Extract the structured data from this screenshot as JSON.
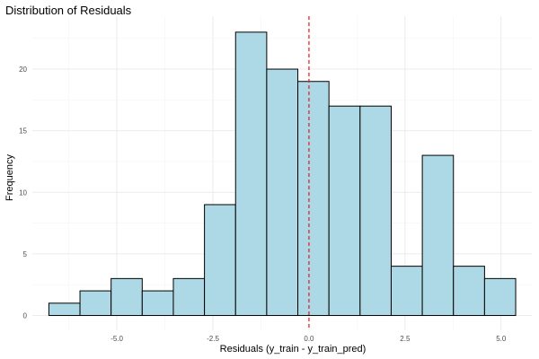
{
  "chart_data": {
    "type": "bar",
    "title": "Distribution of Residuals",
    "xlabel": "Residuals (y_train - y_train_pred)",
    "ylabel": "Frequency",
    "xlim": [
      -7.2,
      5.8
    ],
    "ylim": [
      -1.2,
      24.3
    ],
    "x_ticks": [
      -5.0,
      -2.5,
      0.0,
      2.5,
      5.0
    ],
    "x_tick_labels": [
      "-5.0",
      "-2.5",
      "0.0",
      "2.5",
      "5.0"
    ],
    "y_ticks": [
      0,
      5,
      10,
      15,
      20
    ],
    "y_tick_labels": [
      "0",
      "5",
      "10",
      "15",
      "20"
    ],
    "bins": [
      {
        "x0": -6.77,
        "x1": -5.96,
        "count": 1
      },
      {
        "x0": -5.96,
        "x1": -5.15,
        "count": 2
      },
      {
        "x0": -5.15,
        "x1": -4.34,
        "count": 3
      },
      {
        "x0": -4.34,
        "x1": -3.53,
        "count": 2
      },
      {
        "x0": -3.53,
        "x1": -2.72,
        "count": 3
      },
      {
        "x0": -2.72,
        "x1": -1.91,
        "count": 9
      },
      {
        "x0": -1.91,
        "x1": -1.1,
        "count": 23
      },
      {
        "x0": -1.1,
        "x1": -0.29,
        "count": 20
      },
      {
        "x0": -0.29,
        "x1": 0.52,
        "count": 19
      },
      {
        "x0": 0.52,
        "x1": 1.33,
        "count": 17
      },
      {
        "x0": 1.33,
        "x1": 2.14,
        "count": 17
      },
      {
        "x0": 2.14,
        "x1": 2.95,
        "count": 4
      },
      {
        "x0": 2.95,
        "x1": 3.76,
        "count": 13
      },
      {
        "x0": 3.76,
        "x1": 4.57,
        "count": 4
      },
      {
        "x0": 4.57,
        "x1": 5.38,
        "count": 3
      }
    ],
    "reference_line": {
      "x": 0,
      "style": "dashed",
      "color": "#e31a1c"
    },
    "bar_fill": "#add8e6",
    "bar_stroke": "#000000",
    "grid": true,
    "legend": "none"
  }
}
